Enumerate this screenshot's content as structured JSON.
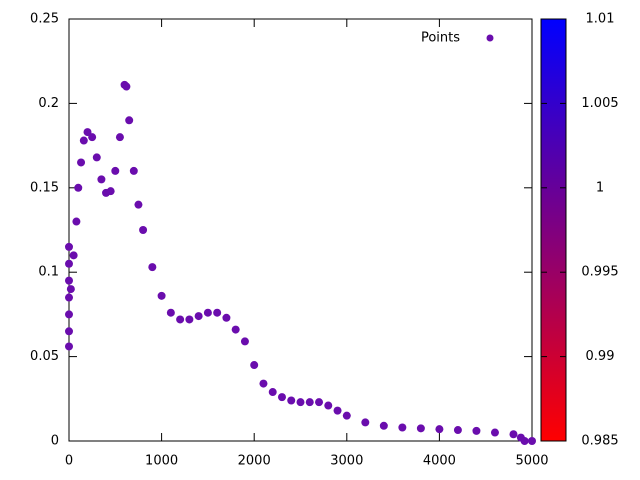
{
  "chart_data": {
    "type": "scatter",
    "series": [
      {
        "name": "Points",
        "color": "#6a0dad",
        "x": [
          0,
          0,
          0,
          0,
          0,
          0,
          0,
          20,
          50,
          80,
          100,
          130,
          160,
          200,
          250,
          300,
          350,
          400,
          450,
          500,
          550,
          600,
          620,
          650,
          700,
          750,
          800,
          900,
          1000,
          1100,
          1200,
          1300,
          1400,
          1500,
          1600,
          1700,
          1800,
          1900,
          2000,
          2100,
          2200,
          2300,
          2400,
          2500,
          2600,
          2700,
          2800,
          2900,
          3000,
          3200,
          3400,
          3600,
          3800,
          4000,
          4200,
          4400,
          4600,
          4800,
          4880,
          4920,
          5000
        ],
        "values": [
          0.056,
          0.065,
          0.075,
          0.085,
          0.095,
          0.105,
          0.115,
          0.09,
          0.11,
          0.13,
          0.15,
          0.165,
          0.178,
          0.183,
          0.18,
          0.168,
          0.155,
          0.147,
          0.148,
          0.16,
          0.18,
          0.211,
          0.21,
          0.19,
          0.16,
          0.14,
          0.125,
          0.103,
          0.086,
          0.076,
          0.072,
          0.072,
          0.074,
          0.076,
          0.076,
          0.073,
          0.066,
          0.059,
          0.045,
          0.034,
          0.029,
          0.026,
          0.024,
          0.023,
          0.023,
          0.023,
          0.021,
          0.018,
          0.015,
          0.011,
          0.009,
          0.008,
          0.0075,
          0.007,
          0.0065,
          0.006,
          0.005,
          0.004,
          0.002,
          0,
          0
        ]
      }
    ],
    "xlim": [
      0,
      5000
    ],
    "xticks": [
      0,
      1000,
      2000,
      3000,
      4000,
      5000
    ],
    "ylim": [
      0,
      0.25
    ],
    "yticks": [
      0,
      0.05,
      0.1,
      0.15,
      0.2,
      0.25
    ],
    "legend": "top-right",
    "colorbar": {
      "lim": [
        0.985,
        1.01
      ],
      "ticks": [
        0.985,
        0.99,
        0.995,
        1,
        1.005,
        1.01
      ],
      "colors": [
        "#ff0000",
        "#0000ff"
      ]
    }
  }
}
